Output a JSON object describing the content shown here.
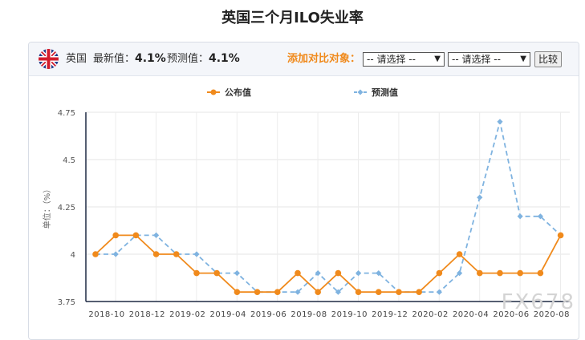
{
  "page": {
    "title": "英国三个月ILO失业率"
  },
  "toolbar": {
    "country": "英国",
    "latest_label": "最新值：",
    "latest_value": "4.1%",
    "forecast_label": "预测值：",
    "forecast_value": "4.1%",
    "add_compare_label": "添加对比对象：",
    "select1_value": "-- 请选择 --",
    "select2_value": "-- 请选择 --",
    "compare_button": "比较"
  },
  "watermark": "FX678",
  "chart_data": {
    "type": "line",
    "title": "",
    "ylabel": "单位：（%）",
    "xlabel": "",
    "ylim": [
      3.75,
      4.75
    ],
    "yticks": [
      "3.75",
      "4",
      "4.25",
      "4.5",
      "4.75"
    ],
    "x_tick_labels": [
      "2018-10",
      "2018-12",
      "2019-02",
      "2019-04",
      "2019-06",
      "2019-08",
      "2019-10",
      "2019-12",
      "2020-02",
      "2020-04",
      "2020-06",
      "2020-08"
    ],
    "x": [
      "2018-10",
      "2018-11",
      "2018-12",
      "2019-01",
      "2019-02",
      "2019-03",
      "2019-04",
      "2019-05",
      "2019-06",
      "2019-07",
      "2019-08",
      "2019-09",
      "2019-10",
      "2019-11",
      "2019-12",
      "2020-01",
      "2020-02",
      "2020-03",
      "2020-04",
      "2020-05",
      "2020-06",
      "2020-07",
      "2020-08",
      "2020-09"
    ],
    "legend_position": "top",
    "grid": true,
    "series": [
      {
        "name": "公布值",
        "color": "#f08a1c",
        "dash": false,
        "values": [
          4.0,
          4.1,
          4.1,
          4.0,
          4.0,
          3.9,
          3.9,
          3.8,
          3.8,
          3.8,
          3.9,
          3.8,
          3.9,
          3.8,
          3.8,
          3.8,
          3.8,
          3.9,
          4.0,
          3.9,
          3.9,
          3.9,
          3.9,
          4.1
        ]
      },
      {
        "name": "预测值",
        "color": "#7fb3e0",
        "dash": true,
        "values": [
          4.0,
          4.0,
          4.1,
          4.1,
          4.0,
          4.0,
          3.9,
          3.9,
          3.8,
          3.8,
          3.8,
          3.9,
          3.8,
          3.9,
          3.9,
          3.8,
          3.8,
          3.8,
          3.9,
          4.3,
          4.7,
          4.2,
          4.2,
          4.1
        ]
      }
    ]
  }
}
